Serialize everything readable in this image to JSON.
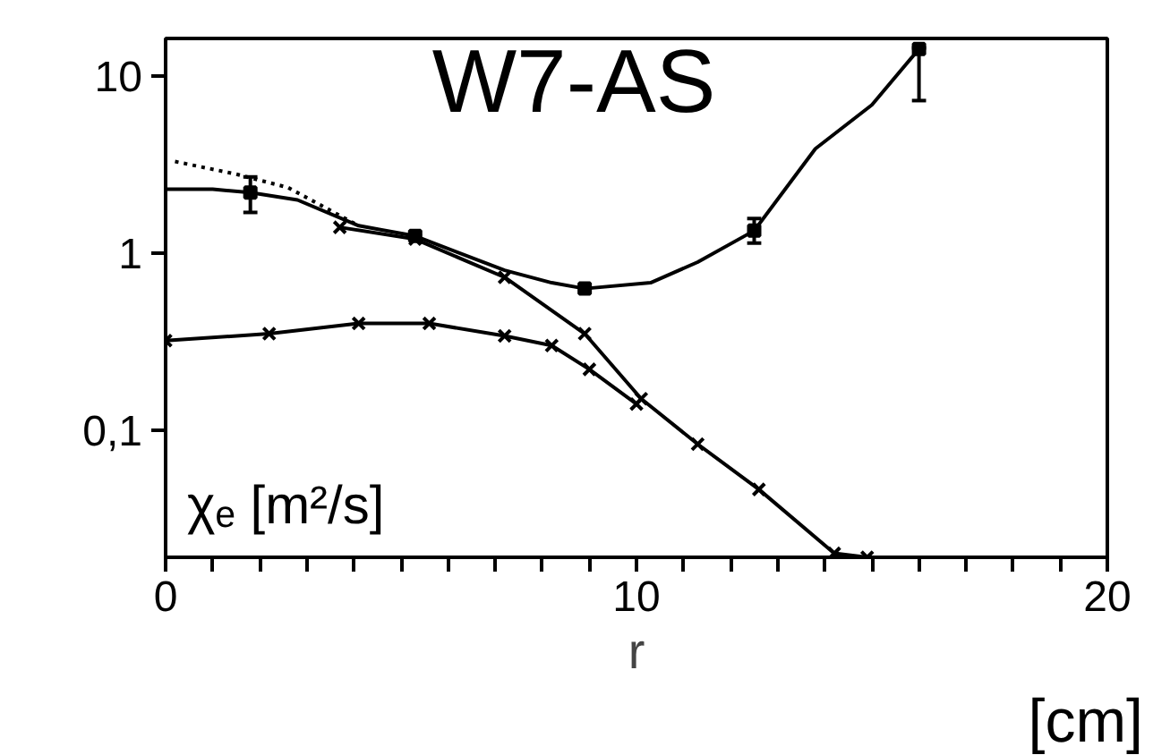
{
  "chart_data": {
    "type": "line",
    "xlabel": "r",
    "ylabel": "χₑ  [m²/s]",
    "annotations": [
      "W7-AS",
      "[cm]"
    ],
    "log": "y",
    "xlim": [
      0,
      20
    ],
    "ylim": [
      0.019,
      16.4
    ],
    "xticks": [
      0,
      {
        "value": 1,
        "label": null
      },
      {
        "value": 2,
        "label": null
      },
      {
        "value": 3,
        "label": null
      },
      {
        "value": 4,
        "label": null
      },
      {
        "value": 5,
        "label": null
      },
      {
        "value": 6,
        "label": null
      },
      {
        "value": 7,
        "label": null
      },
      {
        "value": 8,
        "label": null
      },
      {
        "value": 9,
        "label": null
      },
      10,
      {
        "value": 11,
        "label": null
      },
      {
        "value": 12,
        "label": null
      },
      {
        "value": 13,
        "label": null
      },
      {
        "value": 14,
        "label": null
      },
      {
        "value": 15,
        "label": null
      },
      {
        "value": 16,
        "label": null
      },
      {
        "value": 17,
        "label": null
      },
      {
        "value": 18,
        "label": null
      },
      {
        "value": 19,
        "label": null
      },
      20
    ],
    "yticks": [
      {
        "value": 0.1,
        "label": "0,1"
      },
      1,
      10
    ],
    "series": [
      {
        "color": "#000000",
        "line_style": "solid",
        "marker": "none",
        "x": [
          0,
          1,
          1.8,
          2.8,
          4.1,
          5.3,
          7.2,
          8.2,
          8.9,
          10.3,
          11.3,
          12.5,
          13.8,
          15.0,
          16.0
        ],
        "values": [
          2.3,
          2.3,
          2.2,
          2.0,
          1.43,
          1.25,
          0.8,
          0.68,
          0.63,
          0.68,
          0.89,
          1.34,
          3.9,
          6.9,
          14.3
        ]
      },
      {
        "color": "#000000",
        "line_style": "dotted",
        "marker": "none",
        "x": [
          0.2,
          1.5,
          2.6,
          4.1
        ],
        "values": [
          3.3,
          2.8,
          2.35,
          1.43
        ]
      },
      {
        "color": "#000000",
        "line_style": "solid",
        "marker": "cross",
        "x": [
          3.7,
          5.3,
          7.2,
          8.9,
          10.1,
          11.3,
          12.6,
          14.2,
          14.9
        ],
        "values": [
          1.4,
          1.2,
          0.73,
          0.35,
          0.15,
          0.083,
          0.046,
          0.02,
          0.019
        ]
      },
      {
        "color": "#000000",
        "line_style": "solid",
        "marker": "cross",
        "x": [
          0,
          2.2,
          4.1,
          5.6,
          7.2,
          8.2,
          9,
          10
        ],
        "values": [
          0.32,
          0.35,
          0.4,
          0.4,
          0.34,
          0.3,
          0.22,
          0.14
        ]
      },
      {
        "type": "scatter",
        "color": "#000000",
        "marker": "square",
        "x": [
          1.8,
          5.3,
          8.9,
          12.5,
          16.0
        ],
        "values": [
          2.2,
          1.25,
          0.63,
          1.34,
          14.3
        ],
        "errors": [
          [
            1.7,
            2.7
          ],
          null,
          null,
          [
            1.14,
            1.57
          ],
          [
            7.3,
            14.5
          ]
        ]
      }
    ]
  }
}
